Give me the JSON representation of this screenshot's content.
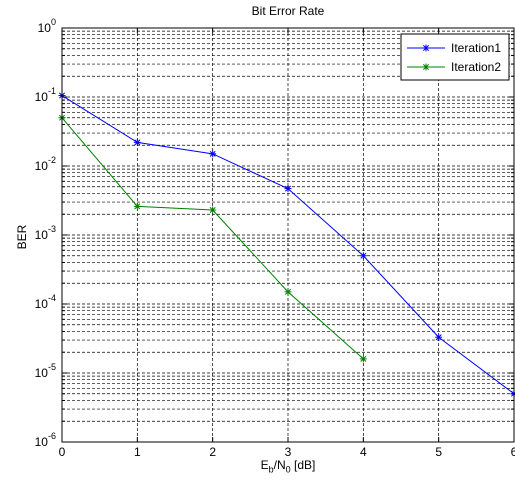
{
  "chart_data": {
    "type": "line",
    "title": "Bit Error Rate",
    "xlabel_main": "E",
    "xlabel_sub1": "b",
    "xlabel_mid": "/N",
    "xlabel_sub2": "0",
    "xlabel_tail": " [dB]",
    "ylabel": "BER",
    "xlim": [
      0,
      6
    ],
    "ylim": [
      1e-06,
      1
    ],
    "yscale": "log",
    "grid": true,
    "legend_position": "top-right",
    "x_ticks": [
      "0",
      "1",
      "2",
      "3",
      "4",
      "5",
      "6"
    ],
    "y_tick_exponents": [
      "0",
      "-1",
      "-2",
      "-3",
      "-4",
      "-5",
      "-6"
    ],
    "series": [
      {
        "name": "Iteration1",
        "color": "#0000ff",
        "x": [
          0,
          1,
          2,
          3,
          4,
          5,
          6
        ],
        "y": [
          0.105,
          0.022,
          0.015,
          0.0047,
          0.0005,
          3.3e-05,
          5e-06
        ]
      },
      {
        "name": "Iteration2",
        "color": "#008000",
        "x": [
          0,
          1,
          2,
          3,
          4
        ],
        "y": [
          0.05,
          0.0026,
          0.0023,
          0.00015,
          1.6e-05
        ]
      }
    ]
  }
}
